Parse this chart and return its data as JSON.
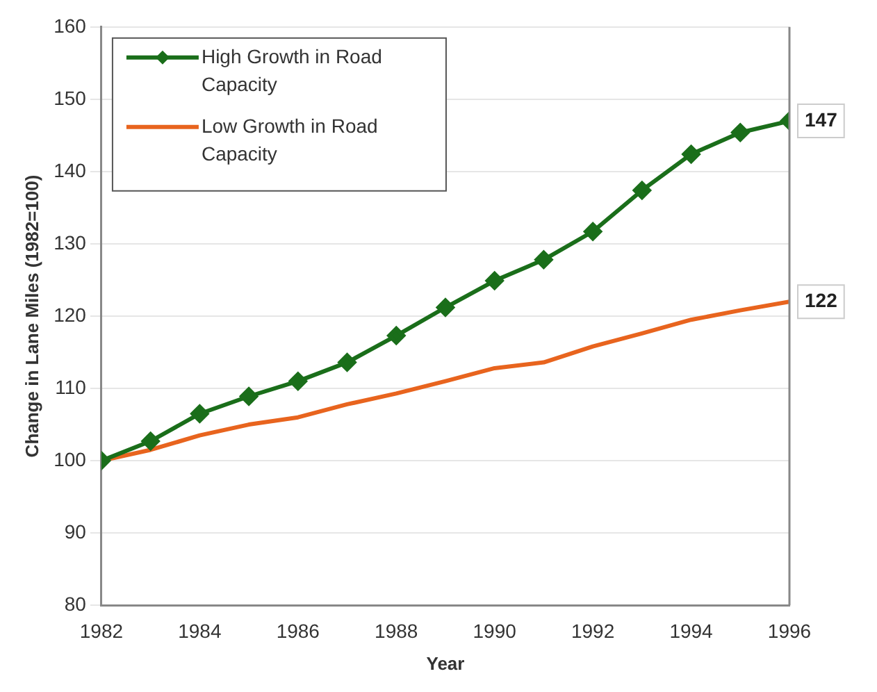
{
  "chart_data": {
    "type": "line",
    "xlabel": "Year",
    "ylabel": "Change in Lane Miles (1982=100)",
    "x": [
      1982,
      1983,
      1984,
      1985,
      1986,
      1987,
      1988,
      1989,
      1990,
      1991,
      1992,
      1993,
      1994,
      1995,
      1996
    ],
    "series": [
      {
        "name": "High Growth in Road Capacity",
        "color": "#1a6e1a",
        "marker": "diamond",
        "values": [
          100,
          102.7,
          106.5,
          108.9,
          111,
          113.6,
          117.3,
          121.2,
          124.9,
          127.8,
          131.7,
          137.4,
          142.4,
          145.4,
          147
        ],
        "value_labels": [
          null,
          null,
          null,
          null,
          null,
          null,
          null,
          null,
          null,
          null,
          null,
          null,
          null,
          null,
          "147"
        ]
      },
      {
        "name": "Low Growth in Road Capacity",
        "color": "#e8641e",
        "marker": "none",
        "values": [
          100,
          101.5,
          103.5,
          105,
          106,
          107.8,
          109.3,
          111,
          112.8,
          113.6,
          115.8,
          117.6,
          119.5,
          120.8,
          122
        ],
        "value_labels": [
          null,
          null,
          null,
          null,
          null,
          null,
          null,
          null,
          null,
          null,
          null,
          null,
          null,
          null,
          "122"
        ]
      }
    ],
    "xlim": [
      1982,
      1996
    ],
    "xticks": [
      1982,
      1984,
      1986,
      1988,
      1990,
      1992,
      1994,
      1996
    ],
    "ylim": [
      80,
      160
    ],
    "yticks": [
      80,
      90,
      100,
      110,
      120,
      130,
      140,
      150,
      160
    ],
    "grid": "y",
    "legend": "top left",
    "line_style": "solid"
  }
}
